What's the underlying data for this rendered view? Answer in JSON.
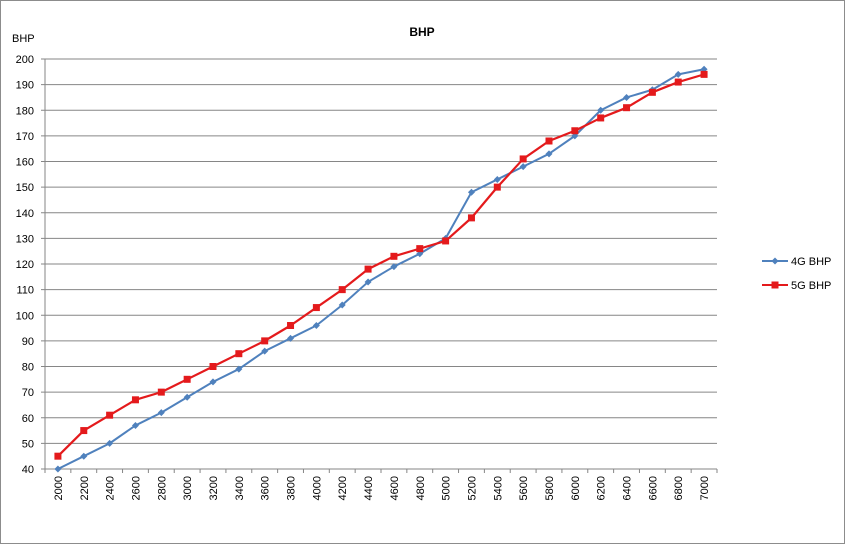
{
  "chart_data": {
    "type": "line",
    "title": "BHP",
    "ylabel": "BHP",
    "xlabel": "",
    "categories": [
      "2000",
      "2200",
      "2400",
      "2600",
      "2800",
      "3000",
      "3200",
      "3400",
      "3600",
      "3800",
      "4000",
      "4200",
      "4400",
      "4600",
      "4800",
      "5000",
      "5200",
      "5400",
      "5600",
      "5800",
      "6000",
      "6200",
      "6400",
      "6600",
      "6800",
      "7000"
    ],
    "ylim": [
      40,
      200
    ],
    "ytick_step": 10,
    "grid": true,
    "legend_position": "right",
    "series": [
      {
        "name": "4G BHP",
        "color": "#4f81bd",
        "marker": "diamond",
        "values": [
          40,
          45,
          50,
          57,
          62,
          68,
          74,
          79,
          86,
          91,
          96,
          104,
          113,
          119,
          124,
          130,
          148,
          153,
          158,
          163,
          170,
          180,
          185,
          188,
          194,
          196
        ]
      },
      {
        "name": "5G BHP",
        "color": "#e41a1c",
        "marker": "square",
        "values": [
          45,
          55,
          61,
          67,
          70,
          75,
          80,
          85,
          90,
          96,
          103,
          110,
          118,
          123,
          126,
          129,
          138,
          150,
          161,
          168,
          172,
          177,
          181,
          187,
          191,
          194
        ]
      }
    ]
  }
}
